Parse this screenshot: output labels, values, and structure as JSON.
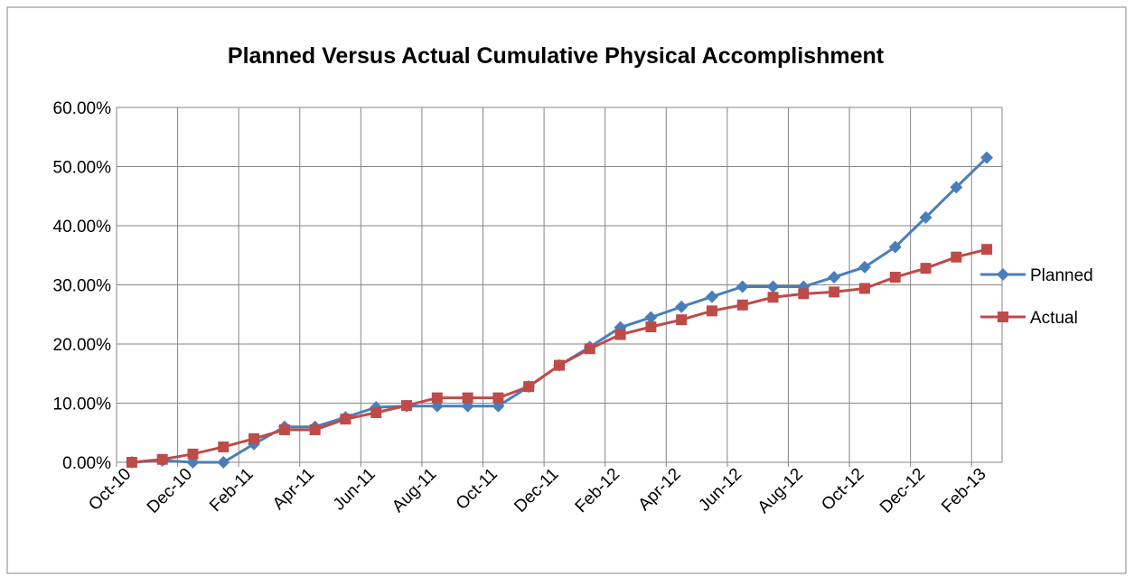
{
  "chart_data": {
    "type": "line",
    "title": "Planned Versus Actual Cumulative Physical Accomplishment",
    "categories": [
      "Oct-10",
      null,
      "Dec-10",
      null,
      "Feb-11",
      null,
      "Apr-11",
      null,
      "Jun-11",
      null,
      "Aug-11",
      null,
      "Oct-11",
      null,
      "Dec-11",
      null,
      "Feb-12",
      null,
      "Apr-12",
      null,
      "Jun-12",
      null,
      "Aug-12",
      null,
      "Oct-12",
      null,
      "Dec-12",
      null,
      "Feb-13"
    ],
    "series": [
      {
        "name": "Planned",
        "color": "#4a7ebb",
        "marker": "diamond",
        "values": [
          0,
          0.3,
          0,
          0,
          3.1,
          6.0,
          6.0,
          7.6,
          9.3,
          9.5,
          9.5,
          9.5,
          9.5,
          12.8,
          16.4,
          19.5,
          22.8,
          24.5,
          26.3,
          28.0,
          29.7,
          29.7,
          29.7,
          31.3,
          33.0,
          36.4,
          41.4,
          46.5,
          51.5
        ]
      },
      {
        "name": "Actual",
        "color": "#be4b48",
        "marker": "square",
        "values": [
          0,
          0.5,
          1.4,
          2.6,
          4.0,
          5.5,
          5.5,
          7.3,
          8.4,
          9.6,
          10.9,
          10.9,
          10.9,
          12.8,
          16.4,
          19.2,
          21.6,
          22.9,
          24.1,
          25.6,
          26.6,
          27.9,
          28.5,
          28.8,
          29.4,
          31.3,
          32.8,
          34.7,
          36.0
        ]
      }
    ],
    "ylim": [
      0,
      60
    ],
    "yticks": [
      {
        "value": 0,
        "label": "0.00%"
      },
      {
        "value": 10,
        "label": "10.00%"
      },
      {
        "value": 20,
        "label": "20.00%"
      },
      {
        "value": 30,
        "label": "30.00%"
      },
      {
        "value": 40,
        "label": "40.00%"
      },
      {
        "value": 50,
        "label": "50.00%"
      },
      {
        "value": 60,
        "label": "60.00%"
      }
    ],
    "grid": true,
    "legend": "right"
  }
}
